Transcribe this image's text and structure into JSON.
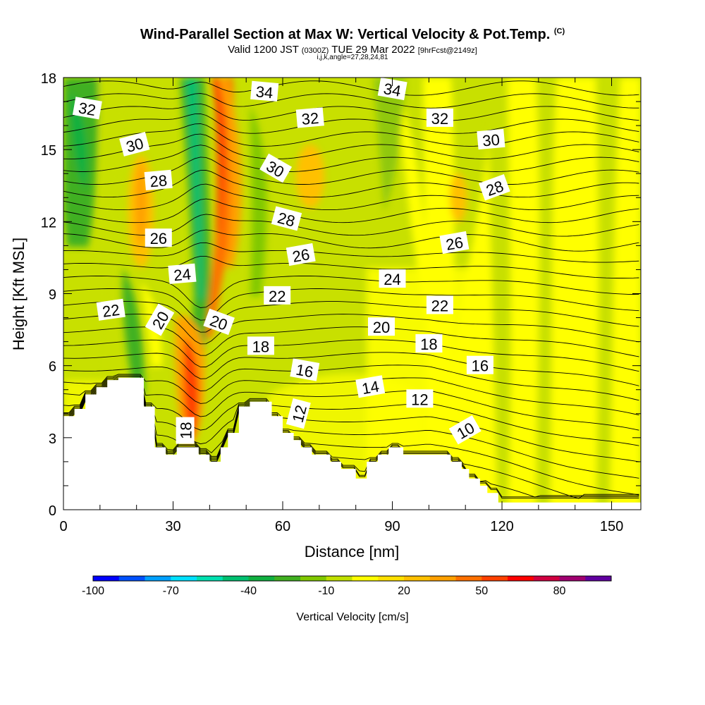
{
  "chart_data": {
    "type": "heatmap",
    "title": "Wind-Parallel Section at Max W: Vertical Velocity & Pot.Temp.",
    "title_suffix": "(C)",
    "subtitle_valid": "Valid 1200 JST",
    "subtitle_z": "(0300Z)",
    "subtitle_date": "TUE 29 Mar 2022",
    "subtitle_fcst": "[9hrFcst@2149z]",
    "subtitle_indices": "i,j,k,angle=27,28,24,81",
    "xlabel": "Distance [nm]",
    "ylabel": "Height [Kft MSL]",
    "xlim": [
      0,
      158
    ],
    "ylim": [
      0,
      18
    ],
    "x_ticks": [
      0,
      30,
      60,
      90,
      120,
      150
    ],
    "y_ticks": [
      0,
      3,
      6,
      9,
      12,
      15,
      18
    ],
    "colorbar": {
      "label": "Vertical Velocity [cm/s]",
      "ticks": [
        -100,
        -70,
        -40,
        -10,
        20,
        50,
        80
      ],
      "range": [
        -100,
        100
      ],
      "colors": [
        "#0000ff",
        "#0050ff",
        "#00a0ff",
        "#00e0ff",
        "#00e0b0",
        "#00c070",
        "#10b040",
        "#40b020",
        "#80c800",
        "#c0e000",
        "#ffff00",
        "#ffe000",
        "#ffc000",
        "#ffa000",
        "#ff7000",
        "#ff4000",
        "#ff0000",
        "#d00040",
        "#a00070",
        "#6000a0"
      ]
    },
    "terrain_profile": [
      [
        0,
        3.9
      ],
      [
        3,
        3.9
      ],
      [
        3,
        4.2
      ],
      [
        6,
        4.2
      ],
      [
        6,
        4.8
      ],
      [
        9,
        4.8
      ],
      [
        9,
        5.1
      ],
      [
        12,
        5.1
      ],
      [
        12,
        5.4
      ],
      [
        15,
        5.4
      ],
      [
        15,
        5.5
      ],
      [
        22,
        5.5
      ],
      [
        22,
        4.3
      ],
      [
        25,
        4.3
      ],
      [
        25,
        2.6
      ],
      [
        28,
        2.6
      ],
      [
        28,
        2.3
      ],
      [
        31,
        2.3
      ],
      [
        31,
        2.6
      ],
      [
        37,
        2.6
      ],
      [
        37,
        2.3
      ],
      [
        40,
        2.3
      ],
      [
        40,
        2.0
      ],
      [
        43,
        2.0
      ],
      [
        43,
        2.6
      ],
      [
        45,
        2.6
      ],
      [
        45,
        3.2
      ],
      [
        48,
        3.2
      ],
      [
        48,
        4.3
      ],
      [
        51,
        4.3
      ],
      [
        51,
        4.5
      ],
      [
        57,
        4.5
      ],
      [
        57,
        3.9
      ],
      [
        60,
        3.9
      ],
      [
        60,
        3.2
      ],
      [
        63,
        3.2
      ],
      [
        63,
        2.9
      ],
      [
        65,
        2.9
      ],
      [
        65,
        2.6
      ],
      [
        68,
        2.6
      ],
      [
        68,
        2.3
      ],
      [
        73,
        2.3
      ],
      [
        73,
        2.0
      ],
      [
        76,
        2.0
      ],
      [
        76,
        1.7
      ],
      [
        80,
        1.7
      ],
      [
        80,
        1.3
      ],
      [
        83,
        1.3
      ],
      [
        83,
        2.0
      ],
      [
        86,
        2.0
      ],
      [
        86,
        2.3
      ],
      [
        89,
        2.3
      ],
      [
        89,
        2.6
      ],
      [
        93,
        2.6
      ],
      [
        93,
        2.3
      ],
      [
        106,
        2.3
      ],
      [
        106,
        2.0
      ],
      [
        109,
        2.0
      ],
      [
        109,
        1.7
      ],
      [
        111,
        1.7
      ],
      [
        111,
        1.3
      ],
      [
        114,
        1.3
      ],
      [
        114,
        1.0
      ],
      [
        116,
        1.0
      ],
      [
        116,
        0.7
      ],
      [
        119,
        0.7
      ],
      [
        119,
        0.3
      ],
      [
        158,
        0.3
      ]
    ],
    "contour_labels": [
      {
        "text": "32",
        "x": 6.5,
        "y": 16.7,
        "angle": 10
      },
      {
        "text": "30",
        "x": 19.5,
        "y": 15.2,
        "angle": -15
      },
      {
        "text": "28",
        "x": 26,
        "y": 13.7,
        "angle": -5
      },
      {
        "text": "26",
        "x": 26,
        "y": 11.3,
        "angle": 0
      },
      {
        "text": "24",
        "x": 32.5,
        "y": 9.8,
        "angle": -5
      },
      {
        "text": "22",
        "x": 13,
        "y": 8.3,
        "angle": -8
      },
      {
        "text": "20",
        "x": 26.5,
        "y": 7.9,
        "angle": -60
      },
      {
        "text": "20",
        "x": 42.5,
        "y": 7.8,
        "angle": 20
      },
      {
        "text": "18",
        "x": 33.5,
        "y": 3.3,
        "angle": -90
      },
      {
        "text": "34",
        "x": 55,
        "y": 17.4,
        "angle": 5
      },
      {
        "text": "32",
        "x": 67.5,
        "y": 16.3,
        "angle": -5
      },
      {
        "text": "30",
        "x": 58,
        "y": 14.2,
        "angle": 30
      },
      {
        "text": "28",
        "x": 61,
        "y": 12.1,
        "angle": 15
      },
      {
        "text": "26",
        "x": 65,
        "y": 10.6,
        "angle": -10
      },
      {
        "text": "22",
        "x": 58.5,
        "y": 8.9,
        "angle": 0
      },
      {
        "text": "18",
        "x": 54,
        "y": 6.8,
        "angle": 0
      },
      {
        "text": "16",
        "x": 66,
        "y": 5.8,
        "angle": 10
      },
      {
        "text": "12",
        "x": 64.5,
        "y": 4.0,
        "angle": -75
      },
      {
        "text": "34",
        "x": 90,
        "y": 17.5,
        "angle": 10
      },
      {
        "text": "32",
        "x": 103,
        "y": 16.3,
        "angle": 0
      },
      {
        "text": "30",
        "x": 117,
        "y": 15.4,
        "angle": -5
      },
      {
        "text": "28",
        "x": 118,
        "y": 13.4,
        "angle": -20
      },
      {
        "text": "26",
        "x": 107,
        "y": 11.1,
        "angle": -10
      },
      {
        "text": "24",
        "x": 90,
        "y": 9.6,
        "angle": 0
      },
      {
        "text": "22",
        "x": 103,
        "y": 8.5,
        "angle": 0
      },
      {
        "text": "20",
        "x": 87,
        "y": 7.6,
        "angle": 0
      },
      {
        "text": "18",
        "x": 100,
        "y": 6.9,
        "angle": 0
      },
      {
        "text": "16",
        "x": 114,
        "y": 6.0,
        "angle": 0
      },
      {
        "text": "14",
        "x": 84,
        "y": 5.1,
        "angle": -10
      },
      {
        "text": "12",
        "x": 97.5,
        "y": 4.6,
        "angle": 0
      },
      {
        "text": "10",
        "x": 110,
        "y": 3.3,
        "angle": -30
      }
    ]
  }
}
